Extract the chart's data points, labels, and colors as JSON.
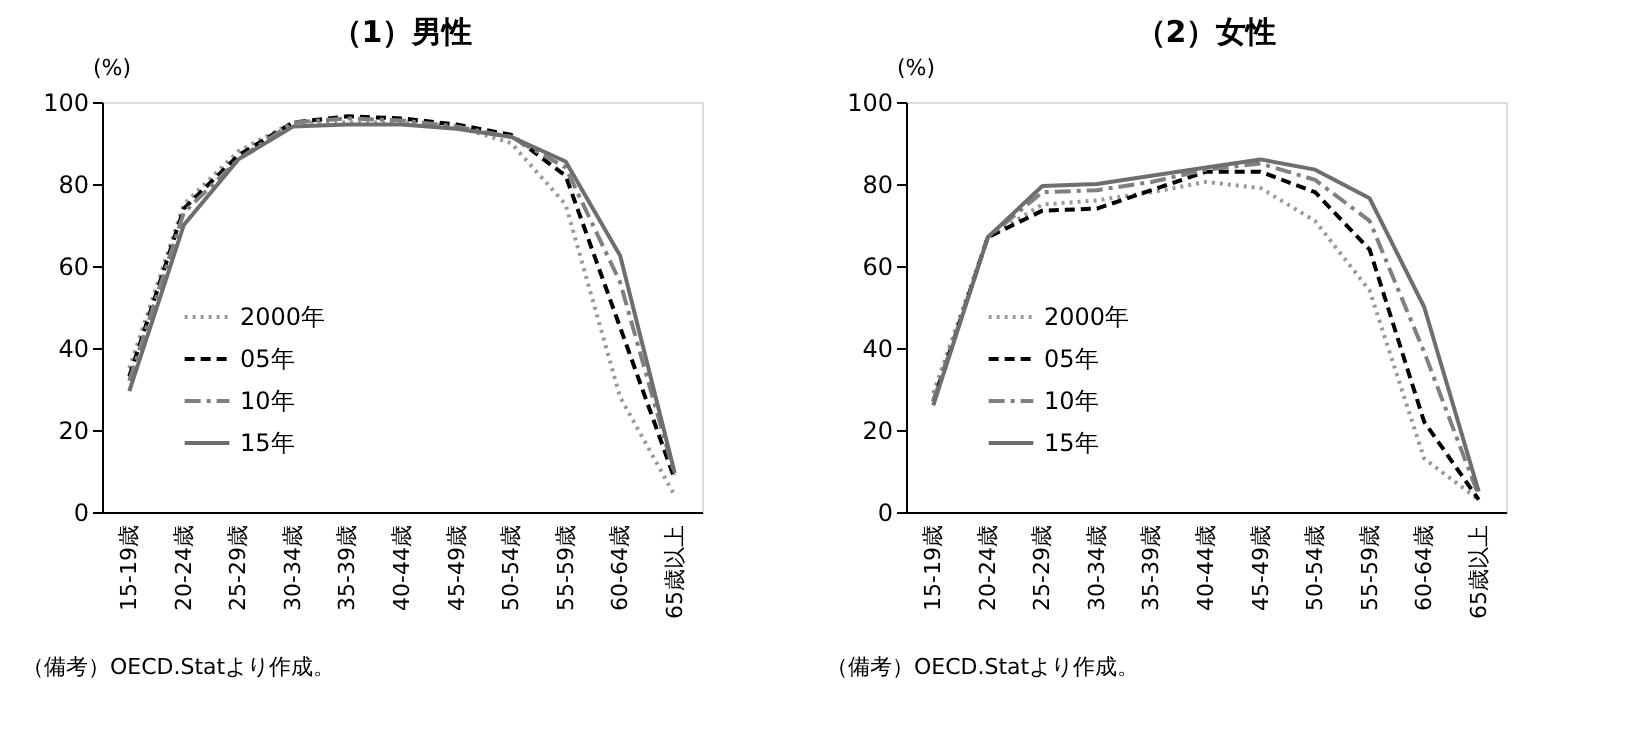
{
  "chart_data": [
    {
      "type": "line",
      "title": "（1）男性",
      "ylabel": "(%)",
      "categories": [
        "15-19歳",
        "20-24歳",
        "25-29歳",
        "30-34歳",
        "35-39歳",
        "40-44歳",
        "45-49歳",
        "50-54歳",
        "55-59歳",
        "60-64歳",
        "65歳以上"
      ],
      "ylim": [
        0,
        100
      ],
      "yticks": [
        0,
        20,
        40,
        60,
        80,
        100
      ],
      "grid": false,
      "legend": "left",
      "marker": "none",
      "annotations": [
        "（備考）OECD.Statより作成。"
      ],
      "series": [
        {
          "name": "2000年",
          "color": "#999999",
          "line_style": "dotted",
          "values": [
            35,
            75,
            88,
            95,
            95,
            95,
            94,
            90,
            75,
            28,
            4
          ]
        },
        {
          "name": "05年",
          "color": "#000000",
          "line_style": "dashed",
          "values": [
            33,
            74,
            87,
            95,
            96.5,
            96,
            94.5,
            92,
            82,
            45,
            8
          ]
        },
        {
          "name": "10年",
          "color": "#808080",
          "line_style": "dashdot",
          "values": [
            32,
            73,
            86,
            95,
            96,
            95.5,
            94,
            91.5,
            84,
            56,
            9
          ]
        },
        {
          "name": "15年",
          "color": "#6e6e6e",
          "line_style": "solid",
          "values": [
            29.5,
            70,
            86,
            94,
            94.5,
            94.5,
            93.5,
            91.5,
            85.5,
            62.5,
            9.5
          ]
        }
      ]
    },
    {
      "type": "line",
      "title": "（2）女性",
      "ylabel": "(%)",
      "categories": [
        "15-19歳",
        "20-24歳",
        "25-29歳",
        "30-34歳",
        "35-39歳",
        "40-44歳",
        "45-49歳",
        "50-54歳",
        "55-59歳",
        "60-64歳",
        "65歳以上"
      ],
      "ylim": [
        0,
        100
      ],
      "yticks": [
        0,
        20,
        40,
        60,
        80,
        100
      ],
      "grid": false,
      "legend": "left",
      "marker": "none",
      "annotations": [
        "（備考）OECD.Statより作成。"
      ],
      "series": [
        {
          "name": "2000年",
          "color": "#999999",
          "line_style": "dotted",
          "values": [
            29,
            67,
            75,
            76,
            78,
            80.5,
            79,
            71,
            54,
            13,
            3
          ]
        },
        {
          "name": "05年",
          "color": "#000000",
          "line_style": "dashed",
          "values": [
            27,
            67,
            73.5,
            74,
            78.5,
            83,
            83,
            78,
            64,
            22,
            3
          ]
        },
        {
          "name": "10年",
          "color": "#808080",
          "line_style": "dashdot",
          "values": [
            27,
            67,
            78,
            78.5,
            80.5,
            83.5,
            85,
            81,
            71,
            39,
            4
          ]
        },
        {
          "name": "15年",
          "color": "#6e6e6e",
          "line_style": "solid",
          "values": [
            26,
            67,
            79.5,
            80,
            82,
            84,
            86,
            83.5,
            76.5,
            50,
            5
          ]
        }
      ]
    }
  ]
}
